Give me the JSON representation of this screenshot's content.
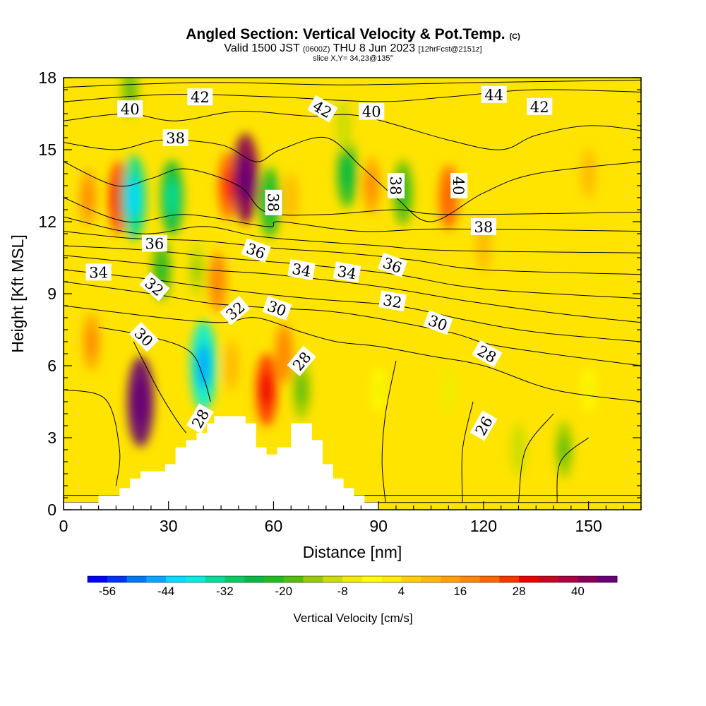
{
  "chart_data": {
    "type": "heatmap",
    "title": "Angled Section: Vertical Velocity & Pot.Temp.",
    "title_suffix": "(C)",
    "subtitle": {
      "valid": "Valid 1500 JST",
      "utc": "(0600Z)",
      "date": "THU 8 Jun 2023",
      "run": "[12hrFcst@2151z]"
    },
    "slice_label": "slice X,Y= 34,23@135°",
    "xlabel": "Distance [nm]",
    "ylabel": "Height [Kft MSL]",
    "xlim": [
      0,
      165
    ],
    "ylim": [
      0,
      18
    ],
    "x_ticks": [
      "0",
      "30",
      "60",
      "90",
      "120",
      "150"
    ],
    "y_ticks": [
      "0",
      "3",
      "6",
      "9",
      "12",
      "15",
      "18"
    ],
    "colorbar": {
      "label": "Vertical Velocity [cm/s]",
      "tick_labels": [
        "-56",
        "-44",
        "-32",
        "-20",
        "-8",
        "4",
        "16",
        "28",
        "40"
      ],
      "min": -60,
      "max": 48,
      "colors": [
        "#0000ff",
        "#0033ff",
        "#0077ff",
        "#00aaff",
        "#00ddff",
        "#00eedd",
        "#00dd99",
        "#00cc66",
        "#00bb44",
        "#22bb22",
        "#55bb11",
        "#99cc00",
        "#ccdd00",
        "#eeee00",
        "#ffff00",
        "#ffee00",
        "#ffd000",
        "#ffbb00",
        "#ffa200",
        "#ff8800",
        "#ff6600",
        "#ff3300",
        "#ee0000",
        "#cc0022",
        "#aa0044",
        "#880055",
        "#660077"
      ]
    },
    "cells": [
      {
        "x": 7,
        "y": 13,
        "v": 14
      },
      {
        "x": 16,
        "y": 13,
        "v": 26
      },
      {
        "x": 20,
        "y": 13,
        "v": -36
      },
      {
        "x": 31,
        "y": 13,
        "v": -28
      },
      {
        "x": 47,
        "y": 13.5,
        "v": 22
      },
      {
        "x": 52,
        "y": 13.8,
        "v": 40
      },
      {
        "x": 59,
        "y": 12.8,
        "v": -24
      },
      {
        "x": 65,
        "y": 13,
        "v": 8
      },
      {
        "x": 81,
        "y": 14,
        "v": -22
      },
      {
        "x": 88,
        "y": 13.5,
        "v": 14
      },
      {
        "x": 97,
        "y": 13.2,
        "v": -20
      },
      {
        "x": 110,
        "y": 13,
        "v": 20
      },
      {
        "x": 19,
        "y": 17.5,
        "v": -14
      },
      {
        "x": 80,
        "y": 16,
        "v": -10
      },
      {
        "x": 28,
        "y": 10,
        "v": -18
      },
      {
        "x": 38,
        "y": 10,
        "v": -12
      },
      {
        "x": 44,
        "y": 9.5,
        "v": 16
      },
      {
        "x": 22,
        "y": 4.5,
        "v": 44
      },
      {
        "x": 8,
        "y": 7,
        "v": 14
      },
      {
        "x": 40,
        "y": 6,
        "v": -40
      },
      {
        "x": 48,
        "y": 6,
        "v": 8
      },
      {
        "x": 58,
        "y": 5,
        "v": 26
      },
      {
        "x": 63,
        "y": 6.5,
        "v": 16
      },
      {
        "x": 68,
        "y": 5,
        "v": -16
      },
      {
        "x": 90,
        "y": 5,
        "v": -4
      },
      {
        "x": 110,
        "y": 5,
        "v": -6
      },
      {
        "x": 130,
        "y": 2.5,
        "v": -10
      },
      {
        "x": 143,
        "y": 2.5,
        "v": -14
      },
      {
        "x": 150,
        "y": 5,
        "v": -4
      },
      {
        "x": 120,
        "y": 11,
        "v": 10
      },
      {
        "x": 150,
        "y": 14,
        "v": 8
      }
    ],
    "series": [
      {
        "values": [
          [
            0,
            0.3
          ],
          [
            165,
            0.3
          ]
        ]
      },
      {
        "values": [
          [
            0,
            0.6
          ],
          [
            10,
            0.6
          ],
          [
            165,
            0.6
          ]
        ]
      },
      {
        "values": [
          [
            0,
            5
          ],
          [
            12,
            4.6
          ],
          [
            16,
            2.5
          ],
          [
            15,
            1
          ]
        ]
      },
      {
        "values": [
          [
            20,
            7
          ],
          [
            27,
            5
          ],
          [
            32,
            3.8
          ],
          [
            35,
            3.2
          ]
        ]
      },
      {
        "values": [
          [
            10,
            7.6
          ],
          [
            25,
            7.2
          ],
          [
            36,
            6.6
          ],
          [
            40,
            5.5
          ],
          [
            42,
            4.5
          ]
        ]
      },
      {
        "values": [
          [
            0,
            8.5
          ],
          [
            28,
            8
          ],
          [
            45,
            7.8
          ],
          [
            55,
            8
          ],
          [
            68,
            7.4
          ],
          [
            78,
            7
          ],
          [
            90,
            6.8
          ],
          [
            105,
            6.4
          ],
          [
            120,
            6
          ],
          [
            140,
            5
          ],
          [
            165,
            4.5
          ]
        ]
      },
      {
        "values": [
          [
            0,
            9.5
          ],
          [
            25,
            9
          ],
          [
            42,
            8.6
          ],
          [
            60,
            8.4
          ],
          [
            80,
            8.2
          ],
          [
            110,
            7.4
          ],
          [
            125,
            6.8
          ],
          [
            165,
            6
          ]
        ]
      },
      {
        "values": [
          [
            0,
            10
          ],
          [
            25,
            9.6
          ],
          [
            45,
            9.2
          ],
          [
            70,
            8.8
          ],
          [
            95,
            8.5
          ],
          [
            115,
            7.9
          ],
          [
            135,
            7.4
          ],
          [
            165,
            7
          ]
        ]
      },
      {
        "values": [
          [
            0,
            10.6
          ],
          [
            20,
            10.3
          ],
          [
            40,
            10
          ],
          [
            60,
            9.8
          ],
          [
            90,
            9.3
          ],
          [
            115,
            8.7
          ],
          [
            140,
            8.2
          ],
          [
            165,
            7.8
          ]
        ]
      },
      {
        "values": [
          [
            0,
            11
          ],
          [
            25,
            10.8
          ],
          [
            45,
            10.5
          ],
          [
            70,
            10.2
          ],
          [
            95,
            9.8
          ],
          [
            120,
            9.2
          ],
          [
            165,
            8.8
          ]
        ]
      },
      {
        "values": [
          [
            0,
            11.6
          ],
          [
            20,
            11.3
          ],
          [
            40,
            11.2
          ],
          [
            60,
            10.9
          ],
          [
            80,
            10.7
          ],
          [
            100,
            10.4
          ],
          [
            120,
            10
          ],
          [
            165,
            9.8
          ]
        ]
      },
      {
        "values": [
          [
            0,
            12.2
          ],
          [
            22,
            11.5
          ],
          [
            40,
            11.8
          ],
          [
            55,
            11.4
          ],
          [
            70,
            11.2
          ],
          [
            90,
            11
          ],
          [
            110,
            10.8
          ],
          [
            165,
            10.7
          ]
        ]
      },
      {
        "values": [
          [
            0,
            13
          ],
          [
            18,
            12
          ],
          [
            35,
            12.3
          ],
          [
            58,
            11.8
          ],
          [
            62,
            12
          ],
          [
            85,
            11.6
          ],
          [
            110,
            11.7
          ],
          [
            165,
            11.6
          ]
        ]
      },
      {
        "values": [
          [
            0,
            14.5
          ],
          [
            15,
            13.5
          ],
          [
            25,
            13.8
          ],
          [
            35,
            14.2
          ],
          [
            50,
            13.5
          ],
          [
            58,
            12.4
          ],
          [
            75,
            12.3
          ],
          [
            95,
            12.5
          ],
          [
            110,
            12.3
          ],
          [
            165,
            12.4
          ]
        ]
      },
      {
        "values": [
          [
            0,
            15.3
          ],
          [
            15,
            15
          ],
          [
            28,
            15.4
          ],
          [
            45,
            15.2
          ],
          [
            55,
            14.5
          ],
          [
            62,
            15
          ],
          [
            75,
            15.5
          ],
          [
            85,
            14.3
          ],
          [
            95,
            13
          ],
          [
            105,
            12
          ],
          [
            120,
            13.2
          ],
          [
            135,
            14
          ],
          [
            165,
            14.5
          ]
        ]
      },
      {
        "values": [
          [
            0,
            16.2
          ],
          [
            18,
            16.5
          ],
          [
            32,
            16.2
          ],
          [
            50,
            16.6
          ],
          [
            70,
            16.4
          ],
          [
            85,
            16.4
          ],
          [
            110,
            15.4
          ],
          [
            125,
            15
          ],
          [
            135,
            15.6
          ],
          [
            150,
            16
          ],
          [
            165,
            15.8
          ]
        ]
      },
      {
        "values": [
          [
            0,
            17
          ],
          [
            30,
            17.3
          ],
          [
            60,
            17.2
          ],
          [
            90,
            17
          ],
          [
            110,
            17.2
          ],
          [
            135,
            17.5
          ],
          [
            165,
            17.4
          ]
        ]
      },
      {
        "values": [
          [
            0,
            17.6
          ],
          [
            40,
            17.8
          ],
          [
            80,
            17.7
          ],
          [
            120,
            17.8
          ],
          [
            165,
            17.9
          ]
        ]
      },
      {
        "values": [
          [
            95,
            6.2
          ],
          [
            92,
            4
          ],
          [
            91,
            2
          ],
          [
            92,
            0.3
          ]
        ]
      },
      {
        "values": [
          [
            117,
            4.5
          ],
          [
            114,
            2.5
          ],
          [
            114,
            0.3
          ]
        ]
      },
      {
        "values": [
          [
            140,
            4
          ],
          [
            132,
            2.5
          ],
          [
            130,
            0.3
          ]
        ]
      },
      {
        "values": [
          [
            150,
            3
          ],
          [
            142,
            2
          ],
          [
            141,
            0.3
          ]
        ]
      }
    ],
    "contour_labels": [
      {
        "text": "42",
        "x": 39,
        "y": 17.2,
        "rot": 0
      },
      {
        "text": "40",
        "x": 19,
        "y": 16.7,
        "rot": 0
      },
      {
        "text": "38",
        "x": 32,
        "y": 15.5,
        "rot": 0
      },
      {
        "text": "42",
        "x": 74,
        "y": 16.7,
        "rot": 30
      },
      {
        "text": "40",
        "x": 88,
        "y": 16.6,
        "rot": 0
      },
      {
        "text": "44",
        "x": 123,
        "y": 17.3,
        "rot": 0
      },
      {
        "text": "42",
        "x": 136,
        "y": 16.8,
        "rot": 0
      },
      {
        "text": "38",
        "x": 60,
        "y": 12.8,
        "rot": 90
      },
      {
        "text": "38",
        "x": 95,
        "y": 13.5,
        "rot": 90
      },
      {
        "text": "40",
        "x": 113,
        "y": 13.5,
        "rot": 90
      },
      {
        "text": "38",
        "x": 120,
        "y": 11.8,
        "rot": 0
      },
      {
        "text": "36",
        "x": 26,
        "y": 11.1,
        "rot": 0
      },
      {
        "text": "36",
        "x": 55,
        "y": 10.8,
        "rot": 20
      },
      {
        "text": "36",
        "x": 94,
        "y": 10.2,
        "rot": 20
      },
      {
        "text": "34",
        "x": 10,
        "y": 9.9,
        "rot": 0
      },
      {
        "text": "34",
        "x": 68,
        "y": 10,
        "rot": 10
      },
      {
        "text": "34",
        "x": 81,
        "y": 9.9,
        "rot": 10
      },
      {
        "text": "32",
        "x": 26,
        "y": 9.3,
        "rot": 40
      },
      {
        "text": "32",
        "x": 49,
        "y": 8.3,
        "rot": -40
      },
      {
        "text": "32",
        "x": 94,
        "y": 8.7,
        "rot": 10
      },
      {
        "text": "30",
        "x": 61,
        "y": 8.4,
        "rot": 20
      },
      {
        "text": "30",
        "x": 107,
        "y": 7.8,
        "rot": 20
      },
      {
        "text": "30",
        "x": 23,
        "y": 7.2,
        "rot": 45
      },
      {
        "text": "28",
        "x": 68,
        "y": 6.2,
        "rot": -50
      },
      {
        "text": "28",
        "x": 121,
        "y": 6.5,
        "rot": 30
      },
      {
        "text": "28",
        "x": 39,
        "y": 3.8,
        "rot": -60
      },
      {
        "text": "26",
        "x": 120,
        "y": 3.5,
        "rot": -60
      }
    ],
    "terrain": [
      [
        0,
        0.3
      ],
      [
        10,
        0.3
      ],
      [
        10,
        0.6
      ],
      [
        16,
        0.6
      ],
      [
        16,
        0.9
      ],
      [
        19,
        0.9
      ],
      [
        19,
        1.3
      ],
      [
        22,
        1.3
      ],
      [
        22,
        1.6
      ],
      [
        29,
        1.6
      ],
      [
        29,
        1.9
      ],
      [
        32,
        1.9
      ],
      [
        32,
        2.6
      ],
      [
        35,
        2.6
      ],
      [
        35,
        2.9
      ],
      [
        38,
        2.9
      ],
      [
        38,
        3.2
      ],
      [
        41,
        3.2
      ],
      [
        41,
        3.6
      ],
      [
        43,
        3.6
      ],
      [
        43,
        3.9
      ],
      [
        52,
        3.9
      ],
      [
        52,
        3.6
      ],
      [
        55,
        3.6
      ],
      [
        55,
        2.6
      ],
      [
        58,
        2.6
      ],
      [
        58,
        2.3
      ],
      [
        61,
        2.3
      ],
      [
        61,
        2.6
      ],
      [
        65,
        2.6
      ],
      [
        65,
        3.6
      ],
      [
        71,
        3.6
      ],
      [
        71,
        2.9
      ],
      [
        74,
        2.9
      ],
      [
        74,
        1.9
      ],
      [
        77,
        1.9
      ],
      [
        77,
        1.3
      ],
      [
        80,
        1.3
      ],
      [
        80,
        0.9
      ],
      [
        83,
        0.9
      ],
      [
        83,
        0.6
      ],
      [
        86,
        0.6
      ],
      [
        86,
        0.3
      ],
      [
        90,
        0.3
      ],
      [
        90,
        0
      ]
    ]
  }
}
